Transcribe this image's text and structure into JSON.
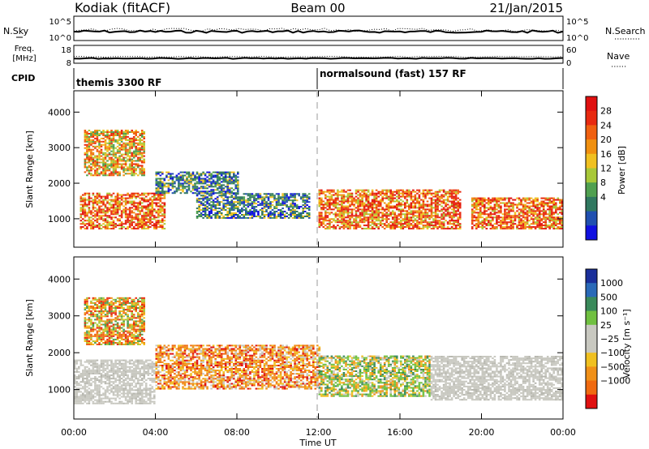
{
  "header": {
    "station": "Kodiak (fitACF)",
    "beam": "Beam 00",
    "date": "21/Jan/2015"
  },
  "noise_panel": {
    "left_label": "N.Sky",
    "left_ticks": [
      "10^5",
      "10^0"
    ],
    "right_ticks": [
      "10^5",
      "10^0"
    ],
    "right_label": "N.Search"
  },
  "freq_panel": {
    "label_line1": "Freq.",
    "label_line2": "[MHz]",
    "left_ticks": [
      "18",
      "8"
    ],
    "right_ticks": [
      "60",
      "0"
    ],
    "right_label": "Nave"
  },
  "cpid_panel": {
    "label": "CPID",
    "programs": [
      "themis 3300 RF",
      "normalsound (fast) 157 RF"
    ]
  },
  "colors": {
    "power_scale": [
      "#1010e0",
      "#2050b0",
      "#307860",
      "#50a050",
      "#a8c838",
      "#f0c020",
      "#f09010",
      "#f06010",
      "#e82a10",
      "#e01010"
    ],
    "velocity_scale": [
      "#1a2f9a",
      "#2a6ab8",
      "#3a8a5a",
      "#70c040",
      "#c8c8c0",
      "#c8c8c0",
      "#f0c020",
      "#f09018",
      "#f06a10",
      "#e01010"
    ]
  },
  "chart_data": [
    {
      "type": "heatmap",
      "title": "Power",
      "xlabel": "",
      "ylabel": "Slant Range [km]",
      "xlim": [
        "00:00",
        "00:00"
      ],
      "x_ticks": [
        "00:00",
        "04:00",
        "08:00",
        "12:00",
        "16:00",
        "20:00",
        "00:00"
      ],
      "ylim": [
        200,
        4600
      ],
      "y_ticks": [
        "1000",
        "2000",
        "3000",
        "4000"
      ],
      "colorbar": {
        "label": "Power [dB]",
        "ticks": [
          "28",
          "24",
          "20",
          "16",
          "12",
          "8",
          "4"
        ]
      },
      "echo_regions": [
        {
          "x": [
            0.3,
            4.5
          ],
          "y": [
            700,
            1700
          ],
          "level": "high"
        },
        {
          "x": [
            0.5,
            3.5
          ],
          "y": [
            2200,
            3500
          ],
          "level": "mixed"
        },
        {
          "x": [
            4.0,
            8.0
          ],
          "y": [
            1700,
            2300
          ],
          "level": "low"
        },
        {
          "x": [
            6.0,
            11.5
          ],
          "y": [
            1000,
            1700
          ],
          "level": "low"
        },
        {
          "x": [
            12.0,
            19.0
          ],
          "y": [
            700,
            1800
          ],
          "level": "high"
        },
        {
          "x": [
            19.5,
            24.0
          ],
          "y": [
            700,
            1600
          ],
          "level": "high"
        }
      ]
    },
    {
      "type": "heatmap",
      "title": "Velocity",
      "xlabel": "Time UT",
      "ylabel": "Slant Range [km]",
      "xlim": [
        "00:00",
        "00:00"
      ],
      "x_ticks": [
        "00:00",
        "04:00",
        "08:00",
        "12:00",
        "16:00",
        "20:00",
        "00:00"
      ],
      "ylim": [
        200,
        4600
      ],
      "y_ticks": [
        "1000",
        "2000",
        "3000",
        "4000"
      ],
      "colorbar": {
        "label": "Velocity [m s⁻¹]",
        "ticks": [
          "1000",
          "500",
          "100",
          "25",
          "−25",
          "−100",
          "−500",
          "−1000"
        ]
      },
      "echo_regions": [
        {
          "x": [
            0.0,
            4.0
          ],
          "y": [
            600,
            1800
          ],
          "level": "ground scatter"
        },
        {
          "x": [
            0.5,
            3.5
          ],
          "y": [
            2200,
            3500
          ],
          "level": "mixed"
        },
        {
          "x": [
            4.0,
            12.0
          ],
          "y": [
            1000,
            2200
          ],
          "level": "negative"
        },
        {
          "x": [
            12.0,
            17.5
          ],
          "y": [
            800,
            1900
          ],
          "level": "positive"
        },
        {
          "x": [
            17.5,
            24.0
          ],
          "y": [
            700,
            1900
          ],
          "level": "ground scatter"
        }
      ]
    }
  ]
}
